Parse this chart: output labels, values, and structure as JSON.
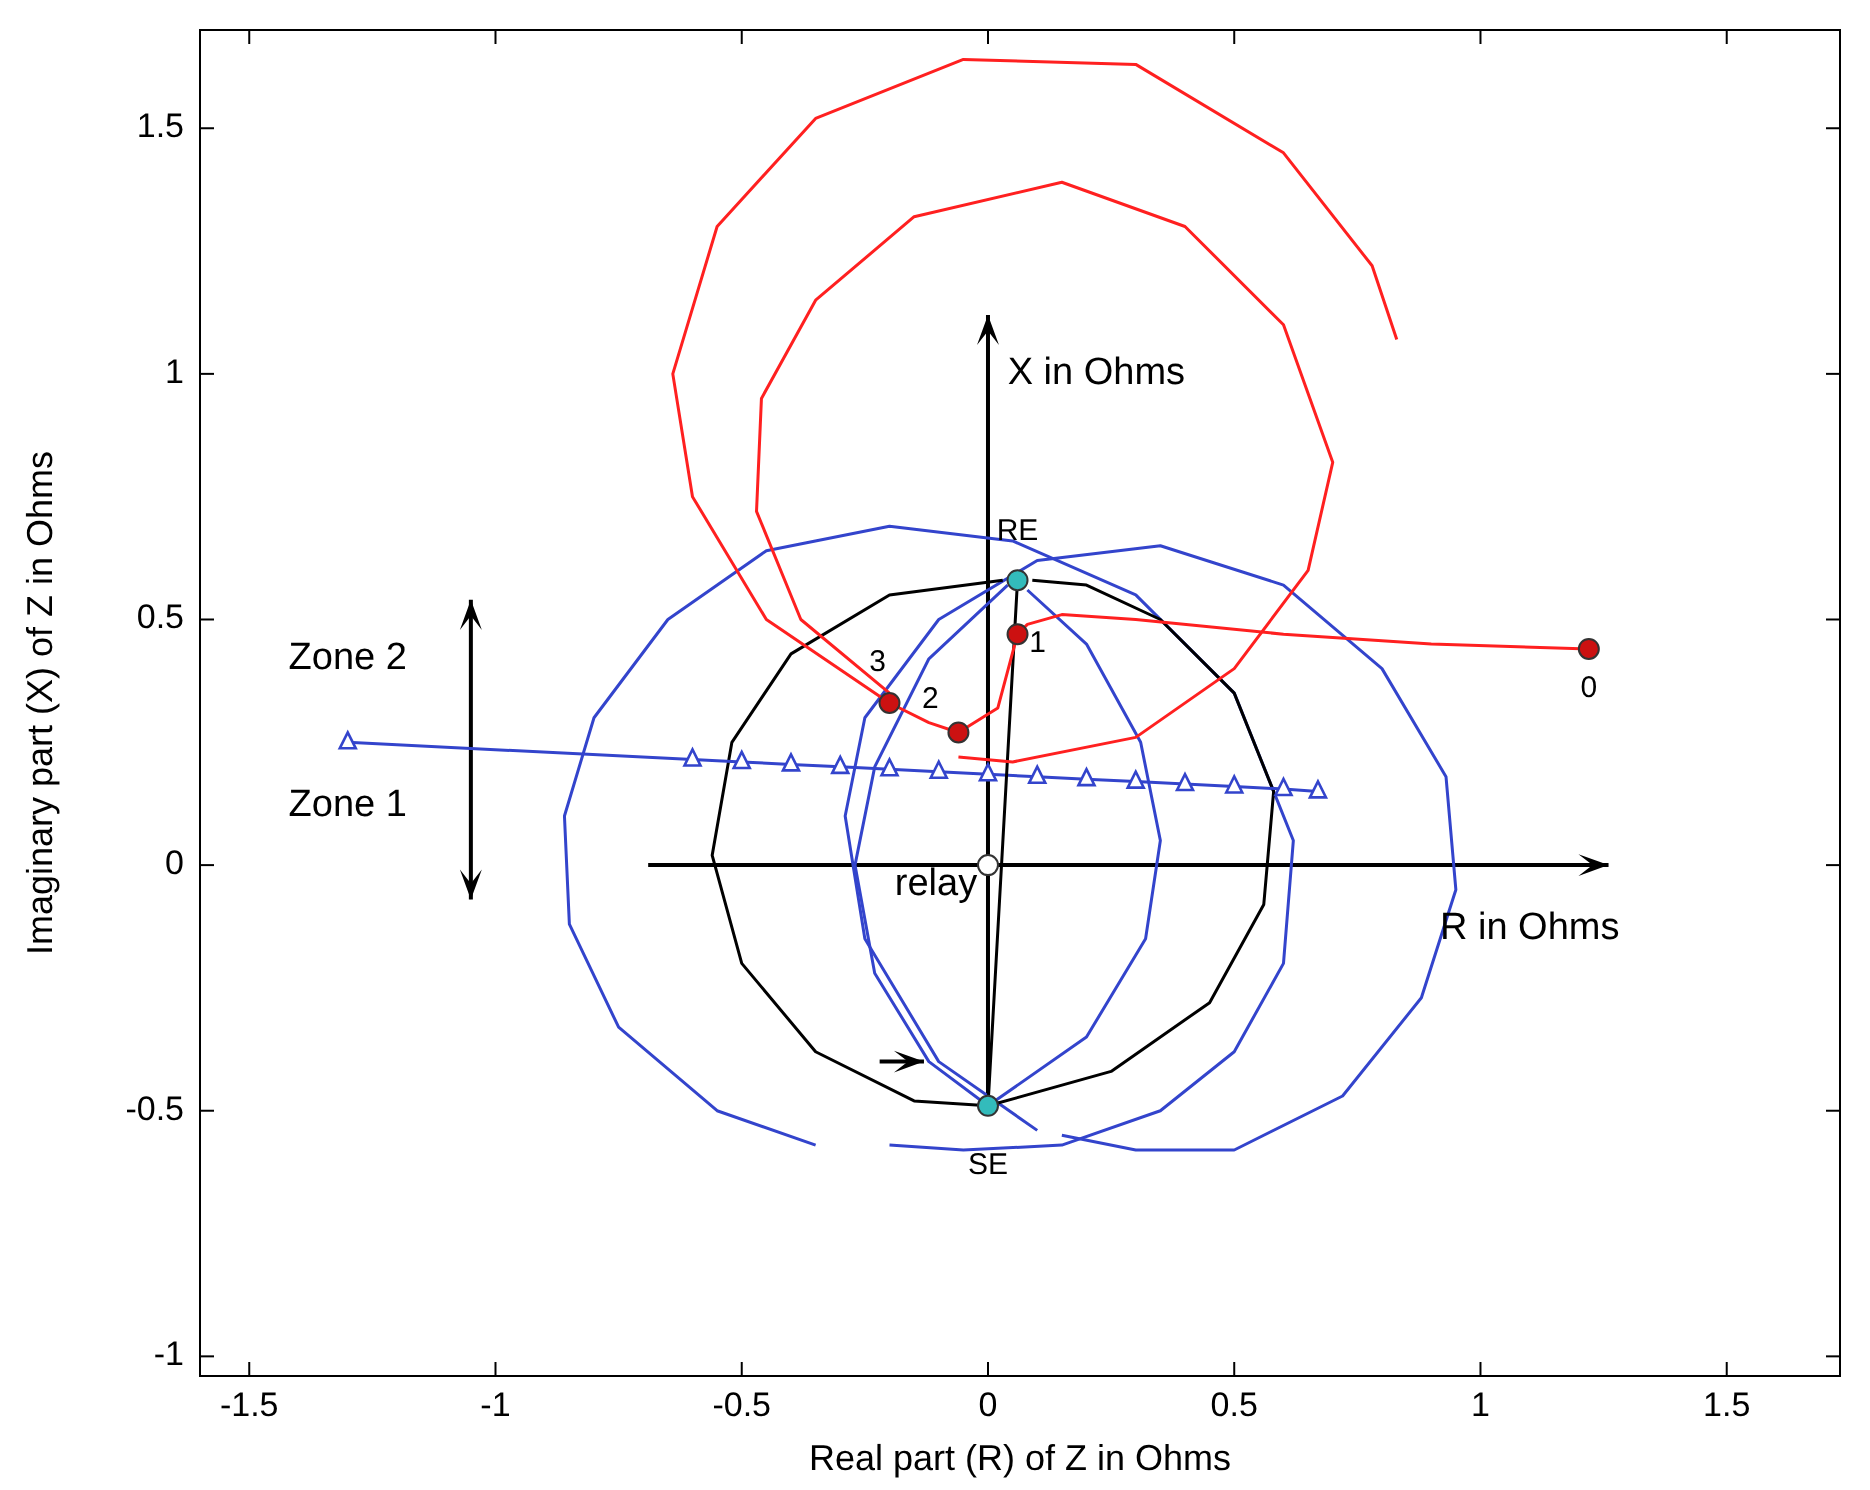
{
  "chart_data": {
    "type": "line",
    "xlabel": "Real part (R) of Z in Ohms",
    "ylabel": "Imaginary part (X) of Z in Ohms",
    "xlim": [
      -1.6,
      1.73
    ],
    "ylim": [
      -1.04,
      1.7
    ],
    "xticks": [
      -1.5,
      -1,
      -0.5,
      0,
      0.5,
      1,
      1.5
    ],
    "yticks": [
      -1,
      -0.5,
      0,
      0.5,
      1,
      1.5
    ],
    "grid": false,
    "series": [
      {
        "type": "line",
        "color": "#3344cc",
        "x": [
          -0.35,
          -0.55,
          -0.75,
          -0.85,
          -0.86,
          -0.8,
          -0.65,
          -0.45,
          -0.2,
          0.05,
          0.3,
          0.5,
          0.62,
          0.6,
          0.5,
          0.35,
          0.15,
          -0.05,
          -0.2
        ],
        "values": [
          -0.57,
          -0.5,
          -0.33,
          -0.12,
          0.1,
          0.3,
          0.5,
          0.64,
          0.69,
          0.66,
          0.55,
          0.35,
          0.05,
          -0.2,
          -0.38,
          -0.5,
          -0.57,
          -0.58,
          -0.57
        ]
      },
      {
        "type": "line",
        "color": "#3344cc",
        "x": [
          0.1,
          -0.1,
          -0.25,
          -0.29,
          -0.25,
          -0.1,
          0.1,
          0.35,
          0.6,
          0.8,
          0.93,
          0.95,
          0.88,
          0.72,
          0.5,
          0.3,
          0.15
        ],
        "values": [
          -0.54,
          -0.4,
          -0.15,
          0.1,
          0.3,
          0.5,
          0.62,
          0.65,
          0.57,
          0.4,
          0.18,
          -0.05,
          -0.27,
          -0.47,
          -0.58,
          -0.58,
          -0.55
        ]
      },
      {
        "type": "line",
        "color": "#3344cc",
        "x": [
          0.04,
          -0.12,
          -0.23,
          -0.27,
          -0.23,
          -0.12,
          0,
          0.2,
          0.32,
          0.35,
          0.31,
          0.2,
          0.08
        ],
        "values": [
          0.57,
          0.42,
          0.2,
          0.0,
          -0.22,
          -0.4,
          -0.49,
          -0.35,
          -0.15,
          0.05,
          0.25,
          0.45,
          0.56
        ]
      },
      {
        "type": "line",
        "color": "#000000",
        "x": [
          0.03,
          -0.2,
          -0.4,
          -0.52,
          -0.56,
          -0.5,
          -0.35,
          -0.15,
          0,
          0.25,
          0.45,
          0.56,
          0.58,
          0.5,
          0.35,
          0.2,
          0.09
        ],
        "values": [
          0.58,
          0.55,
          0.43,
          0.25,
          0.02,
          -0.2,
          -0.38,
          -0.48,
          -0.49,
          -0.42,
          -0.28,
          -0.08,
          0.15,
          0.35,
          0.5,
          0.57,
          0.58
        ]
      },
      {
        "type": "line",
        "color": "#3344cc",
        "marker": "triangle",
        "x": [
          -1.3,
          -0.6,
          -0.5,
          -0.4,
          -0.3,
          -0.2,
          -0.1,
          0,
          0.1,
          0.2,
          0.3,
          0.4,
          0.5,
          0.6,
          0.67
        ],
        "values": [
          0.25,
          0.215,
          0.21,
          0.205,
          0.2,
          0.195,
          0.19,
          0.185,
          0.18,
          0.175,
          0.17,
          0.165,
          0.16,
          0.155,
          0.15
        ]
      },
      {
        "type": "line",
        "color": "#000000",
        "x": [
          0,
          0.03,
          0.06
        ],
        "values": [
          -0.49,
          0.045,
          0.58
        ]
      },
      {
        "type": "line",
        "color": "#ff2020",
        "x": [
          1.22,
          0.9,
          0.6,
          0.3,
          0.15,
          0.08,
          0.06,
          0.02,
          -0.06,
          -0.12,
          -0.2
        ],
        "values": [
          0.44,
          0.45,
          0.47,
          0.5,
          0.51,
          0.49,
          0.47,
          0.32,
          0.27,
          0.29,
          0.33
        ]
      },
      {
        "type": "line",
        "color": "#ff2020",
        "x": [
          -0.06,
          0.05,
          0.3,
          0.5,
          0.65,
          0.7,
          0.6,
          0.4,
          0.15,
          -0.15,
          -0.35,
          -0.46,
          -0.47,
          -0.38,
          -0.2
        ],
        "values": [
          0.22,
          0.21,
          0.26,
          0.4,
          0.6,
          0.82,
          1.1,
          1.3,
          1.39,
          1.32,
          1.15,
          0.95,
          0.72,
          0.5,
          0.35
        ]
      },
      {
        "type": "line",
        "color": "#ff2020",
        "x": [
          -0.2,
          -0.45,
          -0.6,
          -0.64,
          -0.55,
          -0.35,
          -0.05,
          0.3,
          0.6,
          0.78,
          0.83
        ],
        "values": [
          0.33,
          0.5,
          0.75,
          1.0,
          1.3,
          1.52,
          1.64,
          1.63,
          1.45,
          1.22,
          1.07
        ]
      },
      {
        "type": "scatter",
        "color": "#cc1111",
        "marker": "circle",
        "x": [
          1.22,
          0.06,
          -0.06,
          -0.2
        ],
        "values": [
          0.44,
          0.47,
          0.27,
          0.33
        ]
      },
      {
        "type": "scatter",
        "color": "#33bbbb",
        "marker": "circle",
        "x": [
          0.06,
          0
        ],
        "values": [
          0.58,
          -0.49
        ]
      },
      {
        "type": "scatter",
        "color": "#ffffff",
        "marker": "circle",
        "x": [
          0
        ],
        "values": [
          0
        ]
      }
    ],
    "annotations": [
      {
        "text": "0",
        "x": 1.22,
        "y": 0.44
      },
      {
        "text": "1",
        "x": 0.06,
        "y": 0.47
      },
      {
        "text": "2",
        "x": -0.06,
        "y": 0.27
      },
      {
        "text": "3",
        "x": -0.2,
        "y": 0.33
      },
      {
        "text": "RE",
        "x": 0.06,
        "y": 0.58
      },
      {
        "text": "SE",
        "x": 0,
        "y": -0.49
      },
      {
        "text": "relay",
        "x": 0,
        "y": 0
      },
      "X in Ohms",
      "R in Ohms",
      "Zone 2",
      "Zone 1"
    ]
  }
}
